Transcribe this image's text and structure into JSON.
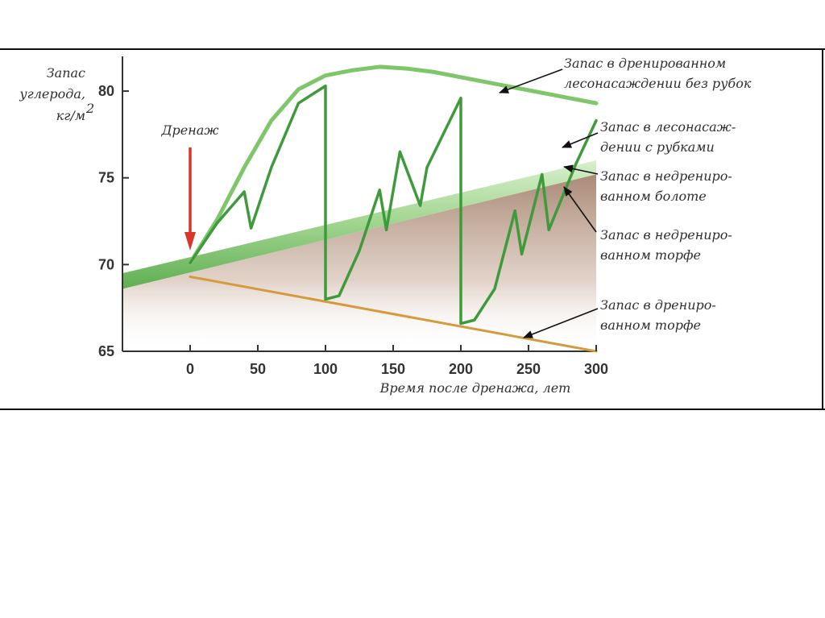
{
  "chart_data": {
    "type": "line",
    "ylabel_lines": [
      "Запас",
      "углерода,",
      "кг/м"
    ],
    "ylabel_sup": "2",
    "xlabel": "Время после дренажа, лет",
    "xlim": [
      -50,
      300
    ],
    "ylim": [
      65,
      82
    ],
    "x_ticks": [
      0,
      50,
      100,
      150,
      200,
      250,
      300
    ],
    "y_ticks": [
      65,
      70,
      75,
      80
    ],
    "grid": false,
    "drainage_annotation": {
      "label": "Дренаж",
      "x": 0
    },
    "series": [
      {
        "name": "Запас в дренированном лесонасаждении без рубок",
        "label_lines": [
          "Запас в дренированном",
          "лесонасаждении без рубок"
        ],
        "color": "#7fc66b",
        "x": [
          0,
          20,
          40,
          60,
          80,
          100,
          120,
          140,
          160,
          180,
          200,
          220,
          240,
          260,
          280,
          300
        ],
        "y": [
          70.1,
          72.6,
          75.6,
          78.3,
          80.1,
          80.9,
          81.2,
          81.4,
          81.3,
          81.1,
          80.8,
          80.5,
          80.2,
          79.9,
          79.6,
          79.3
        ]
      },
      {
        "name": "Запас в лесонасаждении с рубками",
        "label_lines": [
          "Запас в лесонасаж-",
          "дении с рубками"
        ],
        "color": "#3f9a3c",
        "x": [
          0,
          20,
          40,
          45,
          60,
          80,
          100,
          100,
          110,
          125,
          140,
          145,
          155,
          170,
          175,
          200,
          200,
          210,
          225,
          240,
          245,
          260,
          265,
          285,
          300
        ],
        "y": [
          70.1,
          72.4,
          74.2,
          72.1,
          75.6,
          79.3,
          80.3,
          68.0,
          68.2,
          70.8,
          74.3,
          72.0,
          76.5,
          73.4,
          75.6,
          79.6,
          66.6,
          66.8,
          68.6,
          73.1,
          70.6,
          75.2,
          72.0,
          75.8,
          78.3
        ]
      },
      {
        "name": "Запас в недренированном болоте",
        "label_lines": [
          "Запас в недрениро-",
          "ванном болоте"
        ],
        "color": "#9fd48e",
        "x": [
          -50,
          300
        ],
        "y": [
          69.5,
          76.0
        ]
      },
      {
        "name": "Запас в недренированном торфе",
        "label_lines": [
          "Запас в недрениро-",
          "ванном торфе"
        ],
        "color": "#b58e78",
        "x": [
          -50,
          300
        ],
        "y": [
          68.6,
          75.2
        ]
      },
      {
        "name": "Запас в дренированном торфе",
        "label_lines": [
          "Запас в дрениро-",
          "ванном  торфе"
        ],
        "color": "#d49a3c",
        "x": [
          0,
          300
        ],
        "y": [
          69.3,
          65.0
        ]
      }
    ]
  }
}
